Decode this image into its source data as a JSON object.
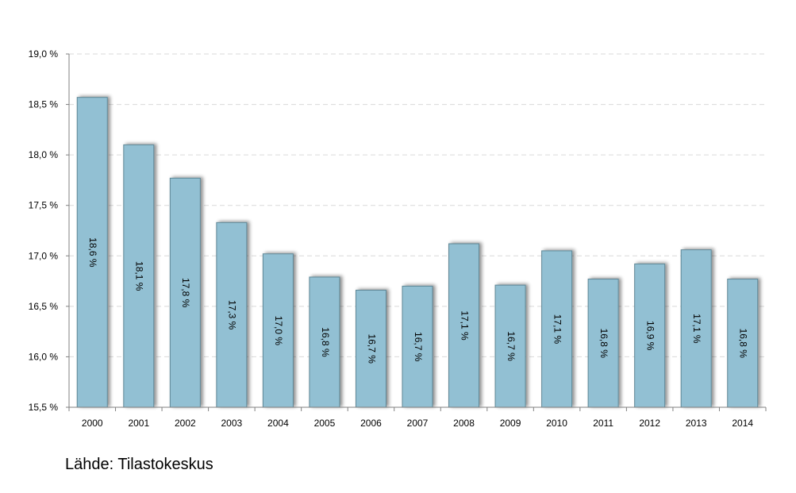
{
  "chart_data": {
    "type": "bar",
    "title": "",
    "xlabel": "",
    "ylabel": "",
    "categories": [
      "2000",
      "2001",
      "2002",
      "2003",
      "2004",
      "2005",
      "2006",
      "2007",
      "2008",
      "2009",
      "2010",
      "2011",
      "2012",
      "2013",
      "2014"
    ],
    "values": [
      18.57,
      18.1,
      17.77,
      17.33,
      17.02,
      16.79,
      16.66,
      16.7,
      17.12,
      16.71,
      17.05,
      16.77,
      16.92,
      17.06,
      16.77
    ],
    "data_labels": [
      "18,6 %",
      "18,1 %",
      "17,8 %",
      "17,3 %",
      "17,0 %",
      "16,8 %",
      "16,7 %",
      "16,7 %",
      "17,1 %",
      "16,7 %",
      "17,1 %",
      "16,8 %",
      "16,9 %",
      "17,1 %",
      "16,8 %"
    ],
    "ylim": [
      15.5,
      19.0
    ],
    "yticks": [
      15.5,
      16.0,
      16.5,
      17.0,
      17.5,
      18.0,
      18.5,
      19.0
    ],
    "ytick_labels": [
      "15,5 %",
      "16,0 %",
      "16,5 %",
      "17,0 %",
      "17,5 %",
      "18,0 %",
      "18,5 %",
      "19,0 %"
    ],
    "grid": true,
    "legend": "none",
    "colors": {
      "bar": "#92c0d3",
      "bar_border": "#5f8796",
      "grid": "#d9d9d9",
      "axis": "#808080"
    }
  },
  "source": {
    "text": "Lähde: Tilastokeskus"
  }
}
